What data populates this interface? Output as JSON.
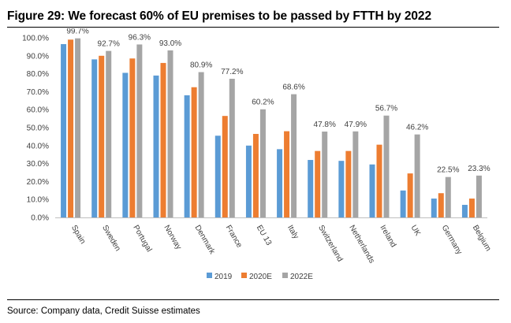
{
  "figure": {
    "title": "Figure 29: We forecast 60% of EU premises to be passed by FTTH by 2022",
    "source": "Source: Company data, Credit Suisse estimates"
  },
  "colors": {
    "series_2019": "#5b9bd5",
    "series_2020E": "#ed7d31",
    "series_2022E": "#a5a5a5",
    "axis": "#bfbfbf",
    "text": "#404040"
  },
  "chart_data": {
    "type": "bar",
    "categories": [
      "Spain",
      "Sweden",
      "Portugal",
      "Norway",
      "Denmark",
      "France",
      "EU 13",
      "Italy",
      "Switzerland",
      "Netherlands",
      "Ireland",
      "UK",
      "Germany",
      "Belgium"
    ],
    "series": [
      {
        "name": "2019",
        "values": [
          96.5,
          88.0,
          80.5,
          79.0,
          68.0,
          45.5,
          40.0,
          38.0,
          32.0,
          31.5,
          29.5,
          15.0,
          10.5,
          7.0
        ]
      },
      {
        "name": "2020E",
        "values": [
          99.0,
          90.0,
          88.5,
          86.0,
          72.5,
          56.5,
          46.5,
          48.0,
          37.0,
          37.0,
          40.5,
          24.5,
          13.5,
          10.5
        ]
      },
      {
        "name": "2022E",
        "values": [
          99.7,
          92.7,
          96.3,
          93.0,
          80.9,
          77.2,
          60.2,
          68.6,
          47.8,
          47.9,
          56.7,
          46.2,
          22.5,
          23.3
        ]
      }
    ],
    "data_labels": [
      "99.7%",
      "92.7%",
      "96.3%",
      "93.0%",
      "80.9%",
      "77.2%",
      "60.2%",
      "68.6%",
      "47.8%",
      "47.9%",
      "56.7%",
      "46.2%",
      "22.5%",
      "23.3%"
    ],
    "y_ticks": [
      "0.0%",
      "10.0%",
      "20.0%",
      "30.0%",
      "40.0%",
      "50.0%",
      "60.0%",
      "70.0%",
      "80.0%",
      "90.0%",
      "100.0%"
    ],
    "ylim": [
      0,
      100
    ],
    "grid": false,
    "legend_position": "bottom"
  }
}
